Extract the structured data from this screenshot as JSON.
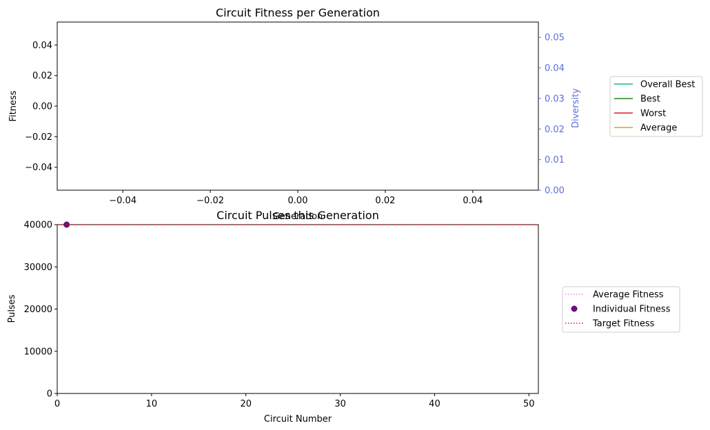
{
  "chart_data": [
    {
      "type": "line",
      "title": "Circuit Fitness per Generation",
      "xlabel": "Generation",
      "ylabel": "Fitness",
      "ylabel_right": "Diversity",
      "xlim": [
        -0.055,
        0.055
      ],
      "ylim": [
        -0.055,
        0.055
      ],
      "ylim_right": [
        0,
        0.055
      ],
      "x_ticks": [
        "−0.04",
        "−0.02",
        "0.00",
        "0.02",
        "0.04"
      ],
      "x_tick_values": [
        -0.04,
        -0.02,
        0.0,
        0.02,
        0.04
      ],
      "y_ticks": [
        "−0.04",
        "−0.02",
        "0.00",
        "0.02",
        "0.04"
      ],
      "y_tick_values": [
        -0.04,
        -0.02,
        0.0,
        0.02,
        0.04
      ],
      "y_right_ticks": [
        "0.00",
        "0.01",
        "0.02",
        "0.03",
        "0.04",
        "0.05"
      ],
      "y_right_tick_values": [
        0.0,
        0.01,
        0.02,
        0.03,
        0.04,
        0.05
      ],
      "right_axis_color": "#5a6fd8",
      "grid": false,
      "legend_placement": "outside-right",
      "series": [
        {
          "name": "Overall Best",
          "color": "#1ab37f",
          "x": [],
          "values": []
        },
        {
          "name": "Best",
          "color": "#138a13",
          "x": [],
          "values": []
        },
        {
          "name": "Worst",
          "color": "#e31a1c",
          "x": [],
          "values": []
        },
        {
          "name": "Average",
          "color": "#d9a21b",
          "x": [],
          "values": []
        }
      ]
    },
    {
      "type": "scatter",
      "title": "Circuit Pulses this Generation",
      "xlabel": "Circuit Number",
      "ylabel": "Pulses",
      "xlim": [
        0,
        51
      ],
      "ylim": [
        0,
        40000
      ],
      "x_ticks": [
        "0",
        "10",
        "20",
        "30",
        "40",
        "50"
      ],
      "x_tick_values": [
        0,
        10,
        20,
        30,
        40,
        50
      ],
      "y_ticks": [
        "0",
        "10000",
        "20000",
        "30000",
        "40000"
      ],
      "y_tick_values": [
        0,
        10000,
        20000,
        30000,
        40000
      ],
      "grid": false,
      "legend_placement": "outside-right",
      "series": [
        {
          "name": "Average Fitness",
          "style": "dotted-line",
          "color": "#ee82ee",
          "x": [],
          "values": []
        },
        {
          "name": "Individual Fitness",
          "style": "points",
          "color": "#6a0f7a",
          "x": [
            1
          ],
          "values": [
            40000
          ]
        },
        {
          "name": "Target Fitness",
          "style": "dotted-line",
          "color": "#e31a1c",
          "x": [
            0,
            51
          ],
          "values": [
            40000,
            40000
          ]
        }
      ]
    }
  ]
}
